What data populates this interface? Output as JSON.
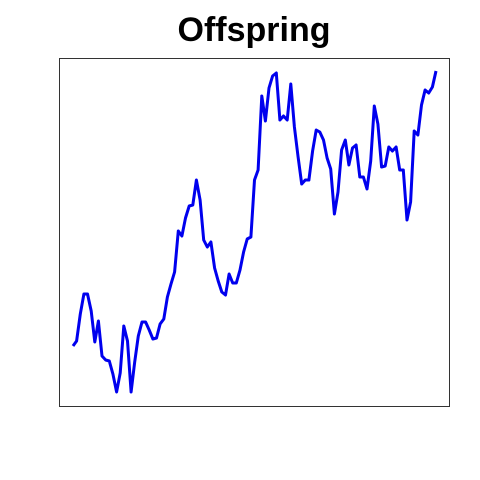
{
  "chart_data": {
    "type": "line",
    "title": "Offspring",
    "series": [
      {
        "color": "#0000ee",
        "values": [
          60,
          65,
          92,
          112,
          112,
          95,
          64,
          85,
          50,
          46,
          45,
          32,
          14,
          33,
          80,
          65,
          14,
          44,
          70,
          84,
          84,
          76,
          67,
          68,
          82,
          87,
          109,
          122,
          134,
          175,
          170,
          188,
          200,
          201,
          226,
          206,
          166,
          159,
          164,
          138,
          125,
          114,
          111,
          132,
          123,
          123,
          136,
          154,
          167,
          169,
          226,
          236,
          310,
          285,
          318,
          330,
          333,
          286,
          290,
          286,
          322,
          279,
          249,
          222,
          226,
          226,
          255,
          276,
          274,
          266,
          248,
          237,
          192,
          214,
          256,
          266,
          241,
          258,
          261,
          229,
          229,
          217,
          245,
          300,
          282,
          239,
          240,
          259,
          255,
          259,
          236,
          236,
          186,
          204,
          275,
          271,
          301,
          316,
          313,
          319,
          335
        ]
      }
    ],
    "ylim": [
      0,
      348
    ]
  }
}
